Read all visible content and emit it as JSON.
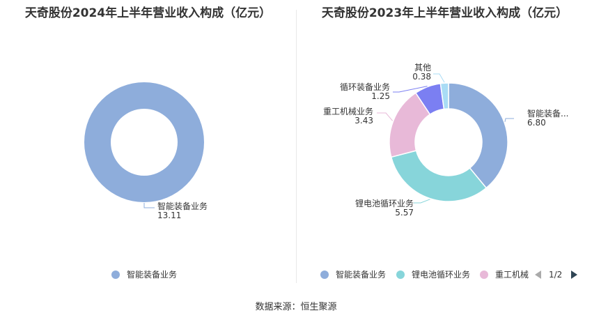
{
  "charts": [
    {
      "title": "天奇股份2024年上半年营业收入构成（亿元）",
      "legend": [
        {
          "label": "智能装备业务",
          "color": "#8eaddb"
        }
      ]
    },
    {
      "title": "天奇股份2023年上半年营业收入构成（亿元）",
      "legend": [
        {
          "label": "智能装备业务",
          "color": "#8eaddb"
        },
        {
          "label": "锂电池循环业务",
          "color": "#87d5da"
        },
        {
          "label": "重工机械",
          "color": "#e8b9d8"
        }
      ],
      "pager": {
        "label": "1/2"
      }
    }
  ],
  "chart_data": [
    {
      "type": "pie",
      "title": "天奇股份2024年上半年营业收入构成（亿元）",
      "donut": true,
      "slices": [
        {
          "label": "智能装备业务",
          "value": 13.11,
          "value_label": "13.11",
          "color": "#8eaddb"
        }
      ],
      "legend_position": "bottom"
    },
    {
      "type": "pie",
      "title": "天奇股份2023年上半年营业收入构成（亿元）",
      "donut": true,
      "slices": [
        {
          "label": "智能装备...",
          "value": 6.8,
          "value_label": "6.80",
          "color": "#8eaddb"
        },
        {
          "label": "锂电池循环业务",
          "value": 5.57,
          "value_label": "5.57",
          "color": "#87d5da"
        },
        {
          "label": "重工机械业务",
          "value": 3.43,
          "value_label": "3.43",
          "color": "#e8b9d8"
        },
        {
          "label": "循环装备业务",
          "value": 1.25,
          "value_label": "1.25",
          "color": "#7b7ff2"
        },
        {
          "label": "其他",
          "value": 0.38,
          "value_label": "0.38",
          "color": "#a9dcf5"
        }
      ],
      "legend_position": "bottom"
    }
  ],
  "footer": {
    "source": "数据来源：恒生聚源"
  }
}
